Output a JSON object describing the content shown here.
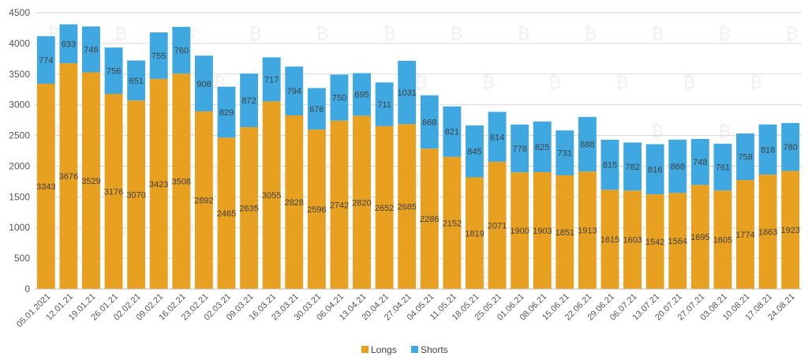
{
  "chart_data": {
    "type": "bar",
    "stacked": true,
    "title": "",
    "xlabel": "",
    "ylabel": "",
    "ylim": [
      0,
      4500
    ],
    "yticks": [
      0,
      500,
      1000,
      1500,
      2000,
      2500,
      3000,
      3500,
      4000,
      4500
    ],
    "grid": true,
    "legend_position": "bottom",
    "categories": [
      "05.01.2021",
      "12.01.21",
      "19.01.21",
      "26.01.21",
      "02.02.21",
      "09.02.21",
      "16.02.21",
      "23.02.21",
      "02.03.21",
      "09.03.21",
      "16.03.21",
      "23.03.21",
      "30.03.21",
      "06.04.21",
      "13.04.21",
      "20.04.21",
      "27.04.21",
      "04.05.21",
      "11.05.21",
      "18.05.21",
      "25.05.21",
      "01.06.21",
      "08.06.21",
      "15.06.21",
      "22.06.21",
      "29.06.21",
      "06.07.21",
      "13.07.21",
      "20.07.21",
      "27.07.21",
      "03.08.21",
      "10.08.21",
      "17.08.21",
      "24.08.21"
    ],
    "series": [
      {
        "name": "Longs",
        "color": "#e8a020",
        "values": [
          3343,
          3676,
          3529,
          3176,
          3070,
          3423,
          3508,
          2892,
          2465,
          2635,
          3055,
          2828,
          2596,
          2742,
          2820,
          2652,
          2685,
          2286,
          2152,
          1819,
          2071,
          1900,
          1903,
          1851,
          1913,
          1615,
          1603,
          1542,
          1564,
          1695,
          1605,
          1774,
          1863,
          1923
        ]
      },
      {
        "name": "Shorts",
        "color": "#3fa8e0",
        "values": [
          774,
          633,
          746,
          756,
          651,
          755,
          760,
          908,
          829,
          872,
          717,
          794,
          676,
          750,
          695,
          711,
          1031,
          868,
          821,
          845,
          814,
          778,
          825,
          731,
          888,
          815,
          782,
          816,
          868,
          748,
          761,
          758,
          816,
          780
        ]
      }
    ]
  }
}
